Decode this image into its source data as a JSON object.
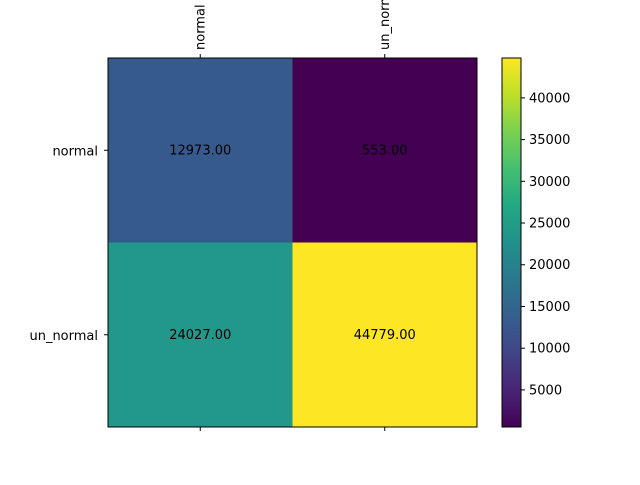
{
  "chart_data": {
    "type": "heatmap",
    "title": "",
    "xlabel": "",
    "ylabel": "",
    "x_categories": [
      "normal",
      "un_normal"
    ],
    "y_categories": [
      "normal",
      "un_normal"
    ],
    "values": [
      [
        12973.0,
        553.0
      ],
      [
        24027.0,
        44779.0
      ]
    ],
    "cell_labels": [
      [
        "12973.00",
        "553.00"
      ],
      [
        "24027.00",
        "44779.00"
      ]
    ],
    "x_tick_position": "top",
    "colormap": "viridis",
    "colorbar": {
      "ticks": [
        5000,
        10000,
        15000,
        20000,
        25000,
        30000,
        35000,
        40000
      ],
      "range": [
        553,
        44779
      ]
    },
    "grid": false
  }
}
